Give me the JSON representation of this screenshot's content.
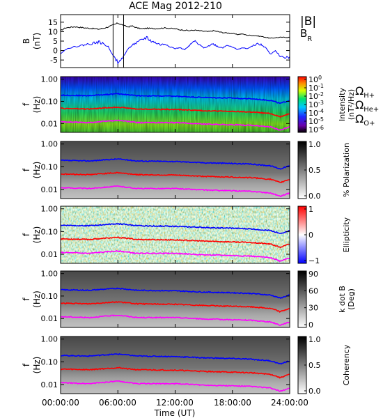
{
  "chart_data": {
    "type": "line",
    "title": "ACE Mag 2012-210",
    "xlabel": "Time (UT)",
    "x_ticks": [
      "00:00:00",
      "06:00:00",
      "12:00:00",
      "18:00:00",
      "24:00:00"
    ],
    "x_range_hours": [
      0,
      24
    ],
    "panels": [
      {
        "name": "field",
        "ylabel": "B",
        "yunit": "(nT)",
        "ylim": [
          -9,
          19
        ],
        "y_ticks": [
          "15",
          "10",
          "5",
          "0",
          "-5"
        ],
        "legend": [
          {
            "text": "|B|",
            "color": "#000000"
          },
          {
            "text": "B",
            "sub": "R",
            "color": "#0000ff"
          }
        ],
        "series": [
          {
            "name": "|B|",
            "color": "#000000",
            "x": [
              0,
              0.5,
              1,
              1.5,
              2,
              2.5,
              3,
              3.5,
              4,
              4.5,
              5,
              5.5,
              6,
              6.5,
              7,
              7.5,
              8,
              8.5,
              9,
              9.5,
              10,
              10.5,
              11,
              11.5,
              12,
              12.5,
              13,
              13.5,
              14,
              14.5,
              15,
              15.5,
              16,
              16.5,
              17,
              17.5,
              18,
              18.5,
              19,
              19.5,
              20,
              20.5,
              21,
              21.5,
              22,
              22.5,
              23,
              23.5,
              24
            ],
            "values": [
              10.5,
              12,
              12.3,
              12.6,
              12.3,
              12.0,
              11.8,
              11.6,
              11.3,
              11.8,
              12.5,
              13.5,
              14.5,
              13.5,
              12.5,
              13.0,
              12.0,
              11.5,
              11.8,
              11.7,
              11.6,
              11.8,
              12.0,
              11.7,
              11.5,
              11.0,
              10.8,
              10.5,
              10.8,
              10.5,
              10.2,
              10.0,
              10.5,
              10.0,
              9.5,
              9.3,
              9.0,
              8.5,
              8.8,
              8.2,
              8.0,
              7.8,
              7.5,
              7.0,
              6.5,
              6.8,
              7.0,
              7.0,
              7.0
            ]
          },
          {
            "name": "B_R",
            "color": "#0000ff",
            "x": [
              0,
              0.5,
              1,
              1.5,
              2,
              2.5,
              3,
              3.5,
              4,
              4.5,
              5,
              5.5,
              6,
              6.5,
              7,
              7.5,
              8,
              8.5,
              9,
              9.5,
              10,
              10.5,
              11,
              11.5,
              12,
              12.5,
              13,
              13.5,
              14,
              14.5,
              15,
              15.5,
              16,
              16.5,
              17,
              17.5,
              18,
              18.5,
              19,
              19.5,
              20,
              20.5,
              21,
              21.5,
              22,
              22.5,
              23,
              23.5,
              24
            ],
            "values": [
              -2,
              0.5,
              1.5,
              2.0,
              2.5,
              3.0,
              3.5,
              4.0,
              4.5,
              3.5,
              2.0,
              -3.0,
              -6.0,
              -4.0,
              0.5,
              3.0,
              4.0,
              5.5,
              7.0,
              5.0,
              4.0,
              3.0,
              3.5,
              2.0,
              1.0,
              1.5,
              0.5,
              2.5,
              5.0,
              3.0,
              1.5,
              2.5,
              3.5,
              2.0,
              1.5,
              3.0,
              2.0,
              0.5,
              1.5,
              1.0,
              2.0,
              3.5,
              3.0,
              1.5,
              -2.0,
              0.0,
              -3.0,
              -3.5,
              -3.5
            ]
          }
        ]
      },
      {
        "name": "intensity",
        "ylabel": "f",
        "yunit": "(Hz)",
        "yscale": "log",
        "ylim": [
          0.004,
          1.3
        ],
        "y_ticks": [
          "1.00",
          "0.10",
          "0.01"
        ],
        "colorbar": {
          "label": "Intensity",
          "unit": "(nT²/Hz)",
          "scale": "rainbow",
          "ticks": [
            {
              "base": "10",
              "exp": "0"
            },
            {
              "base": "10",
              "exp": "-1"
            },
            {
              "base": "10",
              "exp": "-2"
            },
            {
              "base": "10",
              "exp": "-3"
            },
            {
              "base": "10",
              "exp": "-4"
            },
            {
              "base": "10",
              "exp": "-5"
            },
            {
              "base": "10",
              "exp": "-6"
            }
          ]
        },
        "legend": [
          {
            "text": "Ω",
            "sub": "H+",
            "color": "#0000ff"
          },
          {
            "text": "Ω",
            "sub": "He+",
            "color": "#ff0000"
          },
          {
            "text": "Ω",
            "sub": "O+",
            "color": "#ff00ff"
          }
        ]
      },
      {
        "name": "polarization",
        "ylabel": "f",
        "yunit": "(Hz)",
        "yscale": "log",
        "y_ticks": [
          "1.00",
          "0.10",
          "0.01"
        ],
        "colorbar": {
          "label": "% Polarization",
          "scale": "gray",
          "ticks": [
            {
              "base": "1.0"
            },
            {
              "base": "0.5"
            },
            {
              "base": "0.0"
            }
          ]
        }
      },
      {
        "name": "ellipticity",
        "ylabel": "f",
        "yunit": "(Hz)",
        "yscale": "log",
        "y_ticks": [
          "1.00",
          "0.10",
          "0.01"
        ],
        "colorbar": {
          "label": "Ellipticity",
          "scale": "bwr",
          "ticks": [
            {
              "base": "1"
            },
            {
              "base": "0"
            },
            {
              "base": "−1"
            }
          ]
        }
      },
      {
        "name": "kdotb",
        "ylabel": "f",
        "yunit": "(Hz)",
        "yscale": "log",
        "y_ticks": [
          "1.00",
          "0.10",
          "0.01"
        ],
        "colorbar": {
          "label": "k dot B",
          "unit": "(Deg)",
          "scale": "gray",
          "ticks": [
            {
              "base": "90"
            },
            {
              "base": "60"
            },
            {
              "base": "30"
            },
            {
              "base": "0"
            }
          ]
        }
      },
      {
        "name": "coherency",
        "ylabel": "f",
        "yunit": "(Hz)",
        "yscale": "log",
        "y_ticks": [
          "1.00",
          "0.10",
          "0.01"
        ],
        "colorbar": {
          "label": "Coherency",
          "scale": "gray",
          "ticks": [
            {
              "base": "1.0"
            },
            {
              "base": "0.5"
            },
            {
              "base": "0.0"
            }
          ]
        }
      }
    ],
    "gyrofrequency_curves": [
      {
        "name": "H+",
        "color": "#0000ff",
        "x": [
          0,
          3,
          6,
          8,
          12,
          15,
          18,
          20,
          22,
          23,
          24
        ],
        "values": [
          0.19,
          0.18,
          0.22,
          0.18,
          0.17,
          0.15,
          0.14,
          0.13,
          0.11,
          0.08,
          0.11
        ]
      },
      {
        "name": "He+",
        "color": "#ff0000",
        "x": [
          0,
          3,
          6,
          8,
          12,
          15,
          18,
          20,
          22,
          23,
          24
        ],
        "values": [
          0.048,
          0.045,
          0.055,
          0.045,
          0.043,
          0.038,
          0.035,
          0.033,
          0.028,
          0.02,
          0.028
        ]
      },
      {
        "name": "O+",
        "color": "#ff00ff",
        "x": [
          0,
          3,
          6,
          8,
          12,
          15,
          18,
          20,
          22,
          23,
          24
        ],
        "values": [
          0.012,
          0.011,
          0.014,
          0.011,
          0.011,
          0.0095,
          0.0088,
          0.0083,
          0.007,
          0.005,
          0.007
        ]
      }
    ]
  }
}
